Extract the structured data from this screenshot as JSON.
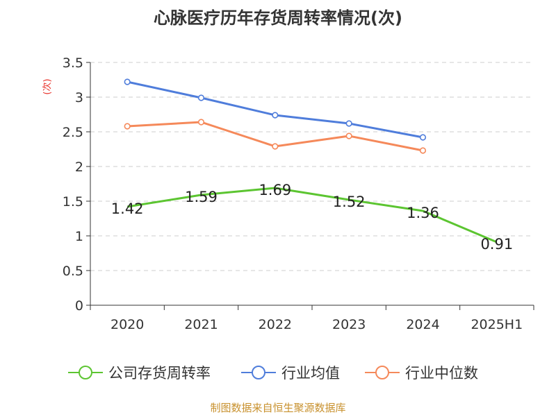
{
  "chart_data": {
    "type": "line",
    "title": "心脉医疗历年存货周转率情况(次)",
    "ylabel": "(次)",
    "xlabel": "",
    "categories": [
      "2020",
      "2021",
      "2022",
      "2023",
      "2024",
      "2025H1"
    ],
    "ylim": [
      0,
      3.5
    ],
    "yticks": [
      0,
      0.5,
      1,
      1.5,
      2,
      2.5,
      3,
      3.5
    ],
    "ytick_labels": [
      "0",
      "0.5",
      "1",
      "1.5",
      "2",
      "2.5",
      "3",
      "3.5"
    ],
    "grid": true,
    "legend_position": "bottom",
    "series": [
      {
        "name": "公司存货周转率",
        "color": "#5cc531",
        "values": [
          1.42,
          1.59,
          1.69,
          1.52,
          1.36,
          0.91
        ],
        "data_labels": [
          "1.42",
          "1.59",
          "1.69",
          "1.52",
          "1.36",
          "0.91"
        ]
      },
      {
        "name": "行业均值",
        "color": "#4f7ddb",
        "values": [
          3.22,
          2.99,
          2.74,
          2.62,
          2.42,
          null
        ]
      },
      {
        "name": "行业中位数",
        "color": "#f5895a",
        "values": [
          2.58,
          2.64,
          2.29,
          2.44,
          2.23,
          null
        ]
      }
    ],
    "source": "制图数据来自恒生聚源数据库"
  },
  "colors": {
    "title": "#333333",
    "axis": "#333333",
    "grid": "#cccccc",
    "ylabel": "#e8312a",
    "source": "#c8912e"
  }
}
